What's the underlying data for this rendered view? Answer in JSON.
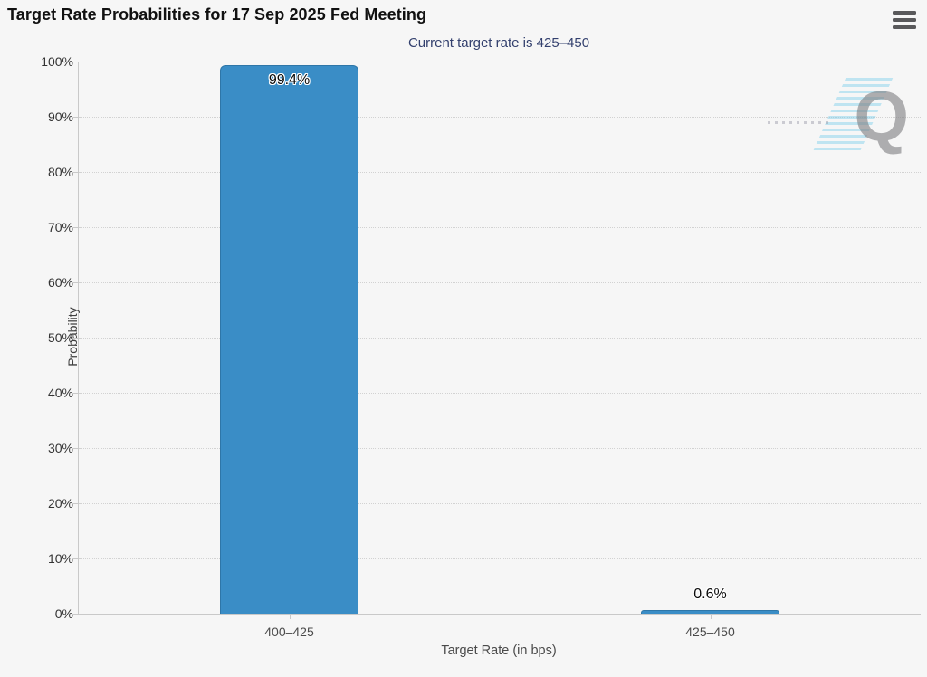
{
  "header": {
    "menu_icon": "hamburger-menu-icon"
  },
  "chart_data": {
    "type": "bar",
    "title": "Target Rate Probabilities for 17 Sep 2025 Fed Meeting",
    "subtitle": "Current target rate is 425–450",
    "categories": [
      "400–425",
      "425–450"
    ],
    "values": [
      99.4,
      0.6
    ],
    "value_labels": [
      "99.4%",
      "0.6%"
    ],
    "xlabel": "Target Rate (in bps)",
    "ylabel": "Probability",
    "ylim": [
      0,
      100
    ],
    "ytick_step": 10,
    "ytick_labels": [
      "0%",
      "10%",
      "20%",
      "30%",
      "40%",
      "50%",
      "60%",
      "70%",
      "80%",
      "90%",
      "100%"
    ],
    "grid": "horizontal-dotted",
    "legend": "none",
    "bar_color": "#3a8dc6",
    "subtitle_color": "#33406e",
    "watermark_letter": "Q"
  }
}
